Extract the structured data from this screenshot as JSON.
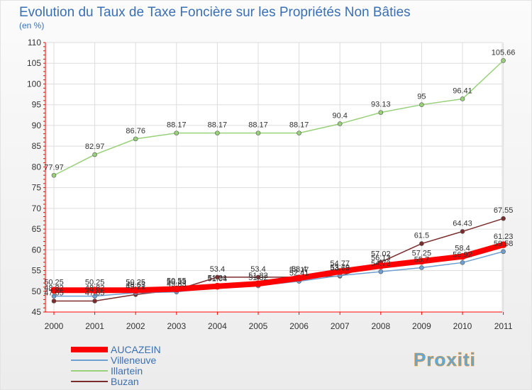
{
  "chart_data": {
    "type": "line",
    "title": "Evolution du Taux de Taxe Foncière sur les Propriétés Non Bâties",
    "ylabel": "(en %)",
    "xlabel": "",
    "ylim": [
      45,
      110
    ],
    "ytick_step": 5,
    "x": [
      "2000",
      "2001",
      "2002",
      "2003",
      "2004",
      "2005",
      "2006",
      "2007",
      "2008",
      "2009",
      "2010",
      "2011"
    ],
    "series": [
      {
        "name": "Buzan",
        "color": "#7a2d2d",
        "values": [
          47.65,
          47.65,
          49.21,
          50.33,
          53.4,
          53.4,
          53.4,
          53.65,
          57.02,
          61.5,
          64.43,
          67.55
        ]
      },
      {
        "name": "Villeneuve",
        "color": "#6e9fd1",
        "values": [
          48.82,
          48.82,
          49.63,
          49.83,
          51.04,
          51.32,
          52.41,
          53.79,
          54.73,
          55.7,
          56.92,
          59.58
        ]
      },
      {
        "name": "Illartein",
        "color": "#99d07a",
        "values": [
          77.97,
          82.97,
          86.76,
          88.17,
          88.17,
          88.17,
          88.17,
          90.4,
          93.13,
          95,
          96.41,
          105.66
        ]
      },
      {
        "name": "AUCAZEIN",
        "color": "#ff0000",
        "values": [
          50.25,
          50.25,
          50.25,
          50.55,
          51.21,
          51.82,
          53.17,
          54.77,
          56.13,
          57.25,
          58.4,
          61.23
        ]
      }
    ],
    "labels": {
      "Buzan": [
        "47.65",
        "47.65",
        "49.21",
        "50.33",
        "53.4",
        "53.4",
        "53.4",
        "53.65",
        "57.02",
        "61.5",
        "64.43",
        "67.55"
      ],
      "Villeneuve": [
        "48.82",
        "48.82",
        "49.63",
        "49.83",
        "51.04",
        "51.32",
        "52.41",
        "53.79",
        "54.73",
        "55.7",
        "56.92",
        "59.58"
      ],
      "Illartein": [
        "77.97",
        "82.97",
        "86.76",
        "88.17",
        "88.17",
        "88.17",
        "88.17",
        "90.4",
        "93.13",
        "95",
        "96.41",
        "105.66"
      ],
      "AUCAZEIN": [
        "50.25",
        "50.25",
        "50.25",
        "50.55",
        "51.21",
        "51.82",
        "53.17",
        "54.77",
        "56.13",
        "57.25",
        "58.4",
        "61.23"
      ]
    },
    "legend": [
      {
        "name": "AUCAZEIN",
        "color": "#ff0000"
      },
      {
        "name": "Villeneuve",
        "color": "#6e9fd1"
      },
      {
        "name": "Illartein",
        "color": "#99d07a"
      },
      {
        "name": "Buzan",
        "color": "#7a2d2d"
      }
    ]
  },
  "logo": {
    "text": "Proxiti"
  }
}
